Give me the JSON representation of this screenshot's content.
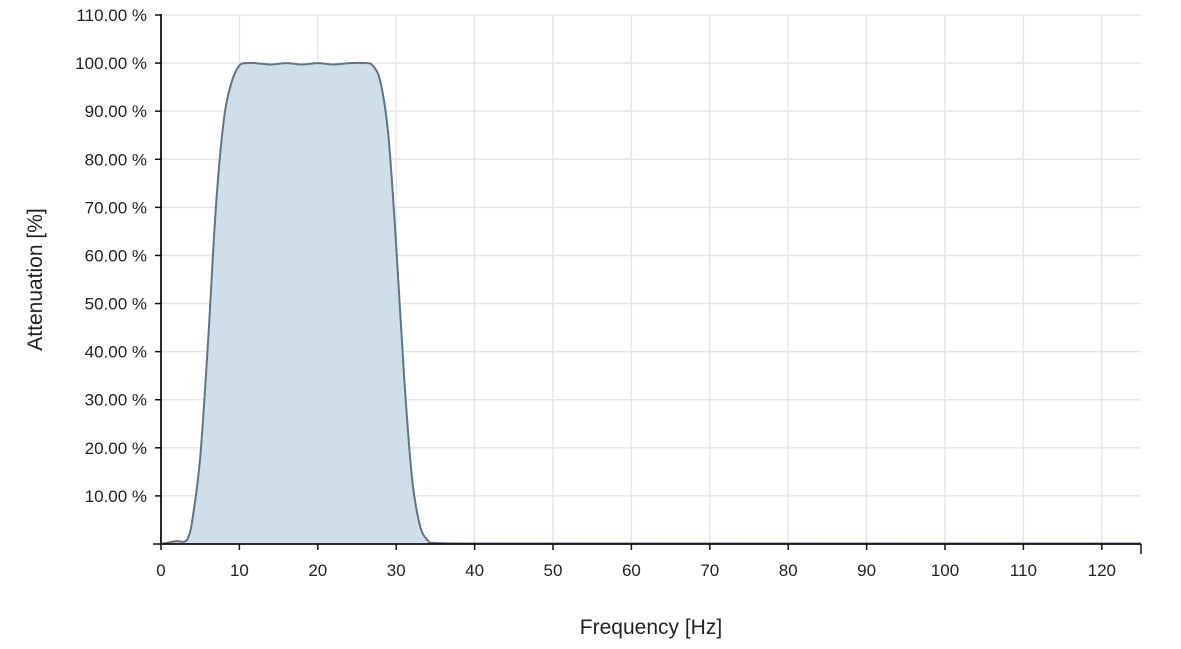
{
  "chart_data": {
    "type": "area",
    "title": "",
    "xlabel": "Frequency [Hz]",
    "ylabel": "Attenuation [%]",
    "xlim": [
      0,
      125
    ],
    "ylim": [
      0,
      110
    ],
    "grid": true,
    "x_ticks": [
      0,
      10,
      20,
      30,
      40,
      50,
      60,
      70,
      80,
      90,
      100,
      110,
      120
    ],
    "x_tick_labels": [
      "0",
      "10",
      "20",
      "30",
      "40",
      "50",
      "60",
      "70",
      "80",
      "90",
      "100",
      "110",
      "120"
    ],
    "y_ticks": [
      10,
      20,
      30,
      40,
      50,
      60,
      70,
      80,
      90,
      100,
      110
    ],
    "y_tick_labels": [
      "10.00 %",
      "20.00 %",
      "30.00 %",
      "40.00 %",
      "50.00 %",
      "60.00 %",
      "70.00 %",
      "80.00 %",
      "90.00 %",
      "100.00 %",
      "110.00 %"
    ],
    "colors": {
      "fill": "#ccdde8",
      "line": "#5f7488"
    },
    "series": [
      {
        "x": [
          0,
          1,
          2,
          3,
          3.5,
          4,
          5,
          6,
          7,
          8,
          9,
          10,
          11,
          12,
          14,
          16,
          18,
          20,
          22,
          24,
          26,
          27,
          28,
          29,
          30,
          31,
          32,
          33,
          34,
          35,
          40,
          50,
          60,
          70,
          80,
          90,
          100,
          110,
          120,
          125
        ],
        "y": [
          0,
          0.3,
          0.6,
          0.5,
          1.5,
          5,
          18,
          42,
          70,
          88,
          96,
          99.5,
          100,
          100,
          99.7,
          100,
          99.7,
          100,
          99.7,
          100,
          100,
          99.5,
          96,
          85,
          62,
          35,
          14,
          4,
          0.8,
          0.2,
          0.1,
          0.1,
          0.1,
          0.1,
          0.1,
          0.1,
          0.1,
          0.1,
          0.1,
          0.1
        ]
      }
    ]
  }
}
